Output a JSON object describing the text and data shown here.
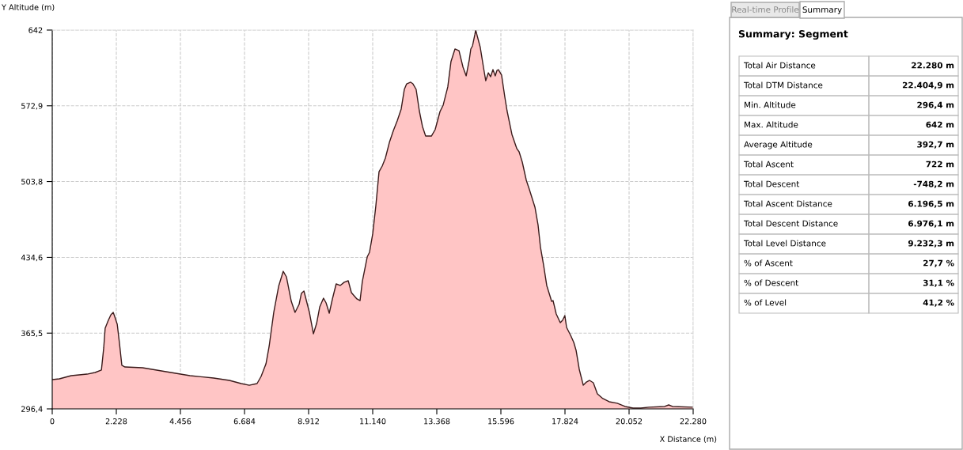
{
  "chart_data": [
    {
      "type": "area",
      "xlabel": "X Distance (m)",
      "ylabel": "Y Altitude (m)",
      "xlim": [
        0,
        22280
      ],
      "ylim": [
        296.4,
        642
      ],
      "xticks": [
        0,
        {
          "value": 2228,
          "label": "2.228"
        },
        {
          "value": 4456,
          "label": "4.456"
        },
        {
          "value": 6684,
          "label": "6.684"
        },
        {
          "value": 8912,
          "label": "8.912"
        },
        {
          "value": 11140,
          "label": "11.140"
        },
        {
          "value": 13368,
          "label": "13.368"
        },
        {
          "value": 15596,
          "label": "15.596"
        },
        {
          "value": 17824,
          "label": "17.824"
        },
        {
          "value": 20052,
          "label": "20.052"
        },
        {
          "value": 22280,
          "label": "22.280"
        }
      ],
      "yticks": [
        {
          "value": 296.4,
          "label": "296,4"
        },
        {
          "value": 365.5,
          "label": "365,5"
        },
        {
          "value": 434.6,
          "label": "434,6"
        },
        {
          "value": 503.8,
          "label": "503,8"
        },
        {
          "value": 572.9,
          "label": "572,9"
        },
        642
      ],
      "grid": true,
      "line_style": "solid",
      "series": [
        {
          "color": "#ffc5c5",
          "x": [
            0,
            250,
            660,
            1210,
            1490,
            1710,
            1790,
            1840,
            1950,
            2040,
            2120,
            2170,
            2260,
            2340,
            2420,
            2530,
            3140,
            3960,
            4790,
            5610,
            6160,
            6570,
            6850,
            7120,
            7260,
            7430,
            7540,
            7700,
            7870,
            8030,
            8140,
            8310,
            8440,
            8580,
            8660,
            8750,
            8940,
            9080,
            9190,
            9300,
            9430,
            9520,
            9630,
            9740,
            9870,
            10010,
            10150,
            10290,
            10400,
            10590,
            10700,
            10780,
            10950,
            11030,
            11140,
            11250,
            11360,
            11470,
            11580,
            11720,
            11860,
            11990,
            12130,
            12240,
            12320,
            12460,
            12540,
            12650,
            12760,
            12870,
            12980,
            13180,
            13310,
            13480,
            13590,
            13750,
            13860,
            14000,
            14140,
            14280,
            14390,
            14500,
            14550,
            14610,
            14690,
            14720,
            14770,
            14880,
            14990,
            15070,
            15160,
            15240,
            15320,
            15400,
            15460,
            15510,
            15620,
            15730,
            15810,
            15980,
            16150,
            16230,
            16340,
            16480,
            16590,
            16780,
            16890,
            16970,
            17080,
            17190,
            17360,
            17410,
            17520,
            17660,
            17740,
            17820,
            17880,
            18020,
            18130,
            18210,
            18320,
            18460,
            18570,
            18680,
            18810,
            18950,
            19140,
            19360,
            19640,
            19910,
            20190,
            20460,
            20740,
            21290,
            21430,
            21560,
            22280
          ],
          "values": [
            323.1,
            323.8,
            326.7,
            328.1,
            329.6,
            331.8,
            352.0,
            370.0,
            377.2,
            382.3,
            384.4,
            380.8,
            373.6,
            355.6,
            336.1,
            334.6,
            333.9,
            330.3,
            326.7,
            324.5,
            322.4,
            319.5,
            318.0,
            319.5,
            326.0,
            337.5,
            353.4,
            384.4,
            408.2,
            421.9,
            416.9,
            394.5,
            384.4,
            391.6,
            401.7,
            403.9,
            384.4,
            364.9,
            374.3,
            389.5,
            397.4,
            393.1,
            383.7,
            396.7,
            410.4,
            409.0,
            411.9,
            413.3,
            402.5,
            396.7,
            395.2,
            412.6,
            435.1,
            439.3,
            455.9,
            481.8,
            512.8,
            517.9,
            525.1,
            539.5,
            550.4,
            559.0,
            569.9,
            587.9,
            592.9,
            594.4,
            592.9,
            587.9,
            568.4,
            554.0,
            545.3,
            545.3,
            551.1,
            567.7,
            573.5,
            590.1,
            613.1,
            624.7,
            623.2,
            608.1,
            600.2,
            615.3,
            624.7,
            627.6,
            637.7,
            642.0,
            637.0,
            626.1,
            608.1,
            595.8,
            603.0,
            599.4,
            605.9,
            600.2,
            605.2,
            605.9,
            600.9,
            581.4,
            568.4,
            546.8,
            533.8,
            530.9,
            521.5,
            504.9,
            496.3,
            480.4,
            463.8,
            444.3,
            427.7,
            409.0,
            394.5,
            395.2,
            383.0,
            375.0,
            377.2,
            381.5,
            370.7,
            363.5,
            357.0,
            349.8,
            332.5,
            318.0,
            320.9,
            322.4,
            320.2,
            310.1,
            305.8,
            302.9,
            301.5,
            298.6,
            297.1,
            297.1,
            297.9,
            298.6,
            300.0,
            298.6,
            297.9
          ]
        }
      ]
    },
    {
      "type": "other",
      "title": "Summary: Segment",
      "annotations": [
        "Real-time Profile",
        "Summary",
        "Total Air Distance",
        "22.280 m",
        "Total DTM Distance",
        "22.404,9 m",
        "Min. Altitude",
        "296,4 m",
        "Max. Altitude",
        "642 m",
        "Average Altitude",
        "392,7 m",
        "Total Ascent",
        "722 m",
        "Total Descent",
        "-748,2 m",
        "Total Ascent Distance",
        "6.196,5 m",
        "Total Descent Distance",
        "6.976,1 m",
        "Total Level Distance",
        "9.232,3 m",
        "% of Ascent",
        "27,7 %",
        "% of Descent",
        "31,1 %",
        "% of Level",
        "41,2 %"
      ]
    }
  ]
}
